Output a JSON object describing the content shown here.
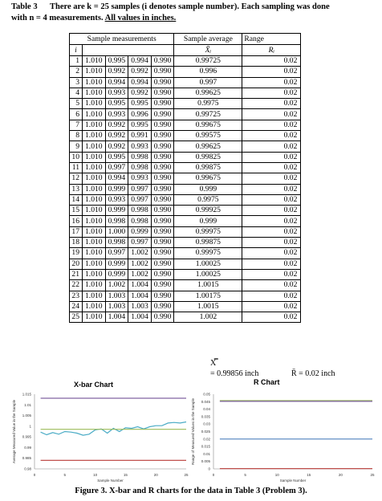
{
  "caption": {
    "label": "Table 3",
    "line1": "There are k = 25 samples (i denotes sample number). Each sampling was done",
    "line2_pre": "with n = 4 measurements. ",
    "line2_u": "All values in inches."
  },
  "table": {
    "header_measurements": "Sample measurements",
    "header_avg": "Sample average",
    "header_range": "Range",
    "sub_i": "i",
    "sub_avg": "X̄ᵢ",
    "sub_range": "Rᵢ",
    "rows": [
      {
        "i": "1",
        "m": [
          "1.010",
          "0.995",
          "0.994",
          "0.990"
        ],
        "avg": "0.99725",
        "r": "0.02"
      },
      {
        "i": "2",
        "m": [
          "1.010",
          "0.992",
          "0.992",
          "0.990"
        ],
        "avg": "0.996",
        "r": "0.02"
      },
      {
        "i": "3",
        "m": [
          "1.010",
          "0.994",
          "0.994",
          "0.990"
        ],
        "avg": "0.997",
        "r": "0.02"
      },
      {
        "i": "4",
        "m": [
          "1.010",
          "0.993",
          "0.992",
          "0.990"
        ],
        "avg": "0.99625",
        "r": "0.02"
      },
      {
        "i": "5",
        "m": [
          "1.010",
          "0.995",
          "0.995",
          "0.990"
        ],
        "avg": "0.9975",
        "r": "0.02"
      },
      {
        "i": "6",
        "m": [
          "1.010",
          "0.993",
          "0.996",
          "0.990"
        ],
        "avg": "0.99725",
        "r": "0.02"
      },
      {
        "i": "7",
        "m": [
          "1.010",
          "0.992",
          "0.995",
          "0.990"
        ],
        "avg": "0.99675",
        "r": "0.02"
      },
      {
        "i": "8",
        "m": [
          "1.010",
          "0.992",
          "0.991",
          "0.990"
        ],
        "avg": "0.99575",
        "r": "0.02"
      },
      {
        "i": "9",
        "m": [
          "1.010",
          "0.992",
          "0.993",
          "0.990"
        ],
        "avg": "0.99625",
        "r": "0.02"
      },
      {
        "i": "10",
        "m": [
          "1.010",
          "0.995",
          "0.998",
          "0.990"
        ],
        "avg": "0.99825",
        "r": "0.02"
      },
      {
        "i": "11",
        "m": [
          "1.010",
          "0.997",
          "0.998",
          "0.990"
        ],
        "avg": "0.99875",
        "r": "0.02"
      },
      {
        "i": "12",
        "m": [
          "1.010",
          "0.994",
          "0.993",
          "0.990"
        ],
        "avg": "0.99675",
        "r": "0.02"
      },
      {
        "i": "13",
        "m": [
          "1.010",
          "0.999",
          "0.997",
          "0.990"
        ],
        "avg": "0.999",
        "r": "0.02"
      },
      {
        "i": "14",
        "m": [
          "1.010",
          "0.993",
          "0.997",
          "0.990"
        ],
        "avg": "0.9975",
        "r": "0.02"
      },
      {
        "i": "15",
        "m": [
          "1.010",
          "0.999",
          "0.998",
          "0.990"
        ],
        "avg": "0.99925",
        "r": "0.02"
      },
      {
        "i": "16",
        "m": [
          "1.010",
          "0.998",
          "0.998",
          "0.990"
        ],
        "avg": "0.999",
        "r": "0.02"
      },
      {
        "i": "17",
        "m": [
          "1.010",
          "1.000",
          "0.999",
          "0.990"
        ],
        "avg": "0.99975",
        "r": "0.02"
      },
      {
        "i": "18",
        "m": [
          "1.010",
          "0.998",
          "0.997",
          "0.990"
        ],
        "avg": "0.99875",
        "r": "0.02"
      },
      {
        "i": "19",
        "m": [
          "1.010",
          "0.997",
          "1.002",
          "0.990"
        ],
        "avg": "0.99975",
        "r": "0.02"
      },
      {
        "i": "20",
        "m": [
          "1.010",
          "0.999",
          "1.002",
          "0.990"
        ],
        "avg": "1.00025",
        "r": "0.02"
      },
      {
        "i": "21",
        "m": [
          "1.010",
          "0.999",
          "1.002",
          "0.990"
        ],
        "avg": "1.00025",
        "r": "0.02"
      },
      {
        "i": "22",
        "m": [
          "1.010",
          "1.002",
          "1.004",
          "0.990"
        ],
        "avg": "1.0015",
        "r": "0.02"
      },
      {
        "i": "23",
        "m": [
          "1.010",
          "1.003",
          "1.004",
          "0.990"
        ],
        "avg": "1.00175",
        "r": "0.02"
      },
      {
        "i": "24",
        "m": [
          "1.010",
          "1.003",
          "1.003",
          "0.990"
        ],
        "avg": "1.0015",
        "r": "0.02"
      },
      {
        "i": "25",
        "m": [
          "1.010",
          "1.004",
          "1.004",
          "0.990"
        ],
        "avg": "1.002",
        "r": "0.02"
      }
    ],
    "summary_xbarbar_symbol": "X̿",
    "summary_xbarbar": "= 0.99856 inch",
    "summary_rbar": "R̄ = 0.02 inch"
  },
  "xbar_chart": {
    "title": "X-bar Chart",
    "ylabel": "Average Measured Value in the Sample",
    "xlabel": "Sample Number",
    "ylim": [
      0.98,
      1.015
    ],
    "yticks": [
      "1.015",
      "1.01",
      "1.005",
      "1",
      "0.995",
      "0.99",
      "0.985",
      "0.98"
    ],
    "ytick_values": [
      1.015,
      1.01,
      1.005,
      1.0,
      0.995,
      0.99,
      0.985,
      0.98
    ],
    "xticks": [
      "0",
      "5",
      "10",
      "15",
      "20",
      "25"
    ],
    "xtick_values": [
      0,
      5,
      10,
      15,
      20,
      25
    ],
    "series": [
      {
        "color": "#4bacc6",
        "x": [
          1,
          2,
          3,
          4,
          5,
          6,
          7,
          8,
          9,
          10,
          11,
          12,
          13,
          14,
          15,
          16,
          17,
          18,
          19,
          20,
          21,
          22,
          23,
          24,
          25
        ],
        "values": [
          0.99725,
          0.996,
          0.997,
          0.99625,
          0.9975,
          0.99725,
          0.99675,
          0.99575,
          0.99625,
          0.99825,
          0.99875,
          0.99675,
          0.999,
          0.9975,
          0.99925,
          0.999,
          0.99975,
          0.99875,
          0.99975,
          1.00025,
          1.00025,
          1.0015,
          1.00175,
          1.0015,
          1.002
        ]
      },
      {
        "color": "#9bbb59",
        "x": [
          1,
          25
        ],
        "values": [
          0.99856,
          0.99856
        ]
      },
      {
        "color": "#8064a2",
        "x": [
          1,
          25
        ],
        "values": [
          1.0131,
          1.0131
        ]
      },
      {
        "color": "#c0504d",
        "x": [
          1,
          25
        ],
        "values": [
          0.984,
          0.984
        ]
      }
    ]
  },
  "r_chart": {
    "title": "R Chart",
    "ylabel": "Range of Measured Values in the Sample",
    "xlabel": "Sample Number",
    "ylim": [
      0,
      0.05
    ],
    "yticks": [
      "0.05",
      "0.045",
      "0.04",
      "0.035",
      "0.03",
      "0.025",
      "0.02",
      "0.015",
      "0.01",
      "0.005",
      "0"
    ],
    "ytick_values": [
      0.05,
      0.045,
      0.04,
      0.035,
      0.03,
      0.025,
      0.02,
      0.015,
      0.01,
      0.005,
      0
    ],
    "xticks": [
      "0",
      "5",
      "10",
      "15",
      "20",
      "25"
    ],
    "xtick_values": [
      0,
      5,
      10,
      15,
      20,
      25
    ],
    "series": [
      {
        "color": "#9bbb59",
        "x": [
          1,
          25
        ],
        "values": [
          0.0457,
          0.0457
        ]
      },
      {
        "color": "#8064a2",
        "x": [
          1,
          25
        ],
        "values": [
          0.0452,
          0.0452
        ]
      },
      {
        "color": "#4f81bd",
        "x": [
          1,
          25
        ],
        "values": [
          0.02,
          0.02
        ]
      },
      {
        "color": "#c0504d",
        "x": [
          1,
          25
        ],
        "values": [
          0.0002,
          0.0002
        ]
      }
    ]
  },
  "figure_caption": "Figure 3. X-bar and R charts for the data in Table 3 (Problem 3)."
}
